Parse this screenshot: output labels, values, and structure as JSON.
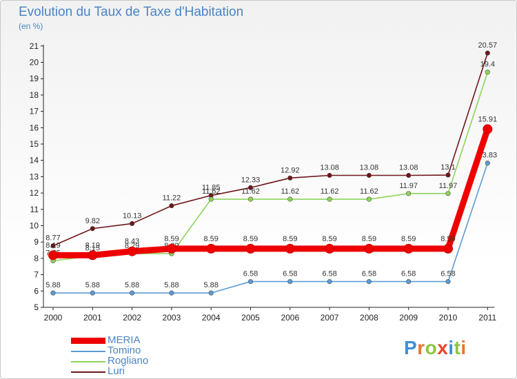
{
  "header": {
    "title": "Evolution du Taux de Taxe d'Habitation",
    "unit": "(en %)"
  },
  "brand": {
    "name": "Proxiti",
    "letter_colors": [
      "#3d8fd8",
      "#e8742a",
      "#8cc63f",
      "#e8422a",
      "#3d8fd8",
      "#8cc63f",
      "#e8742a"
    ]
  },
  "chart_data": {
    "type": "line",
    "title": "Evolution du Taux de Taxe d'Habitation",
    "ylabel": "(en %)",
    "x": [
      "2000",
      "2001",
      "2002",
      "2003",
      "2004",
      "2005",
      "2006",
      "2007",
      "2008",
      "2009",
      "2010",
      "2011"
    ],
    "ylim": [
      5,
      21
    ],
    "yticks": [
      5,
      6,
      7,
      8,
      9,
      10,
      11,
      12,
      13,
      14,
      15,
      16,
      17,
      18,
      19,
      20,
      21
    ],
    "grid": false,
    "legend_position": "bottom-left",
    "series": [
      {
        "name": "Luri",
        "color": "#6e1518",
        "values": [
          8.77,
          9.82,
          10.13,
          11.22,
          11.85,
          12.33,
          12.92,
          13.08,
          13.08,
          13.08,
          13.1,
          20.57
        ],
        "labels": [
          "8.77",
          "9.82",
          "10.13",
          "11.22",
          "11.85",
          "12.33",
          "12.92",
          "13.08",
          "13.08",
          "13.08",
          "13.1",
          "20.57"
        ]
      },
      {
        "name": "Rogliano",
        "color": "#8ed35a",
        "values": [
          7.85,
          8.15,
          8.29,
          8.29,
          11.62,
          11.62,
          11.62,
          11.62,
          11.62,
          11.97,
          11.97,
          19.4
        ],
        "labels": [
          "7.85",
          "8.15",
          "8.29",
          "8.29",
          "11.62",
          "11.62",
          "11.62",
          "11.62",
          "11.62",
          "11.97",
          "11.97",
          "19.4"
        ]
      },
      {
        "name": "Tomino",
        "color": "#5c9ad2",
        "values": [
          5.88,
          5.88,
          5.88,
          5.88,
          5.88,
          6.58,
          6.58,
          6.58,
          6.58,
          6.58,
          6.58,
          13.83
        ],
        "labels": [
          "5.88",
          "5.88",
          "5.88",
          "5.88",
          "5.88",
          "6.58",
          "6.58",
          "6.58",
          "6.58",
          "6.58",
          "6.58",
          "13.83"
        ]
      },
      {
        "name": "MERIA",
        "color": "#ee0000",
        "values": [
          8.19,
          8.19,
          8.43,
          8.59,
          8.59,
          8.59,
          8.59,
          8.59,
          8.59,
          8.59,
          8.59,
          15.91
        ],
        "labels": [
          "8.19",
          "8.19",
          "8.43",
          "8.59",
          "8.59",
          "8.59",
          "8.59",
          "8.59",
          "8.59",
          "8.59",
          "8.59",
          "15.91"
        ]
      }
    ],
    "legend": [
      "MERIA",
      "Tomino",
      "Rogliano",
      "Luri"
    ]
  }
}
